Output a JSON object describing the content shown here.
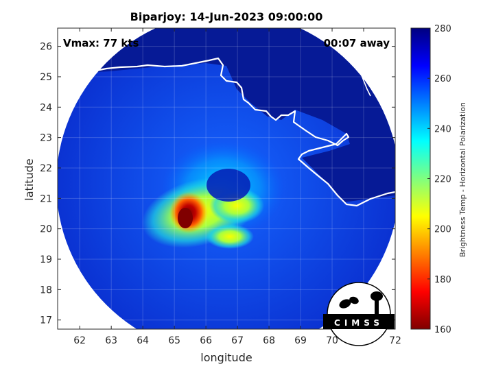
{
  "title": "Biparjoy: 14-Jun-2023 09:00:00",
  "vmax_text": "Vmax: 77 kts",
  "time_offset_text": "00:07 away",
  "xlabel": "longitude",
  "ylabel": "latitude",
  "colorbar_label": "Brightness Temp - Horizontal Polarization",
  "logo_text": "CIMSS",
  "x_ticks": [
    "62",
    "63",
    "64",
    "65",
    "66",
    "67",
    "68",
    "69",
    "70",
    "71",
    "72"
  ],
  "y_ticks": [
    "17",
    "18",
    "19",
    "20",
    "21",
    "22",
    "23",
    "24",
    "25",
    "26"
  ],
  "colorbar_ticks": [
    "160",
    "180",
    "200",
    "220",
    "240",
    "260",
    "280"
  ],
  "chart_data": {
    "type": "heatmap",
    "xlim": [
      61.3,
      72
    ],
    "ylim": [
      16.7,
      26.6
    ],
    "clim": [
      160,
      280
    ],
    "grid": true,
    "colormap": "jet",
    "storm_center": {
      "lon": 66.6,
      "lat": 21.5
    },
    "coldest_core": {
      "lon": 65.3,
      "lat": 20.3,
      "tb": 162
    }
  },
  "colors": {
    "background_ocean": "#0b3ad8",
    "land_outside": "#06168a",
    "coastline": "#ffffff"
  }
}
